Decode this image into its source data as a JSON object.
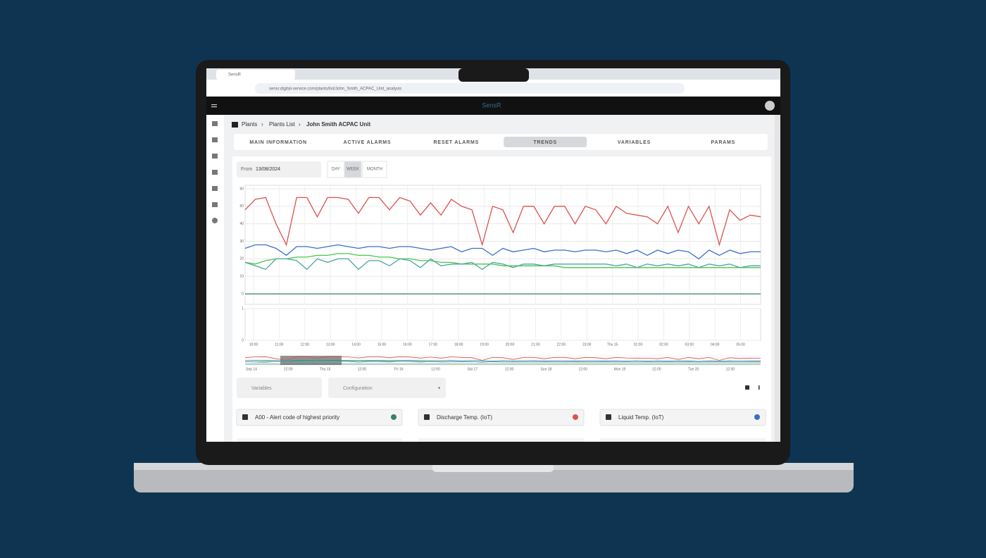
{
  "browser": {
    "tab_title": "SensR",
    "url": "sensr.digital-service.com/plants/list/John_Smith_ACPAC_Unit_analysis"
  },
  "app": {
    "logo": "SensR"
  },
  "breadcrumb": [
    "Plants",
    "Plants List",
    "John Smith ACPAC Unit"
  ],
  "tabs": {
    "items": [
      "MAIN INFORMATION",
      "ACTIVE ALARMS",
      "RESET ALARMS",
      "TRENDS",
      "VARIABLES",
      "PARAMS"
    ],
    "active": 3
  },
  "date_filter": {
    "label": "From",
    "date": "13/08/2024",
    "ranges": [
      "DAY",
      "WEEK",
      "MONTH"
    ],
    "active": 1
  },
  "chart": {
    "type": "line",
    "ylim": [
      -6,
      62
    ],
    "yticks": [
      0,
      10,
      20,
      30,
      40,
      50,
      60
    ],
    "lower_ylim": [
      0,
      1
    ],
    "lower_yticks": [
      0,
      1
    ],
    "xticks": [
      "10:00",
      "11:00",
      "12:00",
      "13:00",
      "14:00",
      "15:00",
      "16:00",
      "17:00",
      "18:00",
      "19:00",
      "20:00",
      "21:00",
      "22:00",
      "23:00",
      "Thu 15",
      "01:00",
      "02:00",
      "03:00",
      "04:00",
      "05:00"
    ],
    "grid": true,
    "series": [
      {
        "name": "Discharge Temp. (IoT)",
        "color": "#d9534f",
        "values": [
          48,
          54,
          55,
          40,
          28,
          55,
          55,
          44,
          55,
          55,
          54,
          46,
          55,
          55,
          48,
          55,
          53,
          45,
          52,
          45,
          54,
          50,
          48,
          28,
          50,
          48,
          35,
          50,
          50,
          40,
          50,
          50,
          40,
          50,
          48,
          40,
          50,
          46,
          45,
          44,
          40,
          50,
          35,
          50,
          40,
          50,
          28,
          48,
          42,
          45,
          44
        ]
      },
      {
        "name": "Liquid Temp. (IoT)",
        "color": "#3a6fc4",
        "values": [
          26,
          28,
          28,
          26,
          22,
          27,
          27,
          26,
          27,
          28,
          27,
          26,
          27,
          27,
          26,
          27,
          27,
          26,
          25,
          26,
          27,
          24,
          26,
          26,
          22,
          26,
          24,
          25,
          26,
          24,
          25,
          25,
          24,
          25,
          25,
          24,
          25,
          23,
          25,
          22,
          25,
          23,
          25,
          24,
          20,
          25,
          22,
          25,
          23,
          24,
          24
        ]
      },
      {
        "color": "#4cc44c",
        "values": [
          18,
          17,
          19,
          20,
          20,
          21,
          21,
          22,
          22,
          23,
          23,
          22,
          22,
          21,
          21,
          20,
          20,
          19,
          19,
          18,
          18,
          17,
          17,
          17,
          17,
          16,
          16,
          16,
          16,
          16,
          16,
          15,
          15,
          15,
          15,
          15,
          15,
          15,
          15,
          15,
          15,
          15,
          15,
          15,
          15,
          15,
          15,
          15,
          15,
          15,
          15
        ]
      },
      {
        "color": "#4aa8a0",
        "values": [
          18,
          16,
          14,
          20,
          20,
          19,
          14,
          20,
          18,
          20,
          20,
          14,
          19,
          19,
          16,
          20,
          19,
          15,
          20,
          16,
          17,
          17,
          18,
          14,
          18,
          17,
          15,
          17,
          17,
          16,
          17,
          17,
          17,
          17,
          17,
          17,
          16,
          17,
          15,
          17,
          16,
          17,
          16,
          17,
          15,
          17,
          16,
          17,
          15,
          16,
          16
        ]
      },
      {
        "name": "A00 - Alert code of highest priority",
        "color": "#3d7f62",
        "values": [
          0,
          0,
          0,
          0,
          0,
          0,
          0,
          0,
          0,
          0,
          0,
          0,
          0,
          0,
          0,
          0,
          0,
          0,
          0,
          0,
          0,
          0,
          0,
          0,
          0,
          0,
          0,
          0,
          0,
          0,
          0,
          0,
          0,
          0,
          0,
          0,
          0,
          0,
          0,
          0,
          0,
          0,
          0,
          0,
          0,
          0,
          0,
          0,
          0,
          0,
          0
        ]
      }
    ],
    "navigator_labels": [
      "Sep 14",
      "12:00",
      "Thu 15",
      "12:00",
      "Fri 16",
      "12:00",
      "Sat 17",
      "12:00",
      "Sun 18",
      "12:00",
      "Mon 19",
      "12:00",
      "Tue 20",
      "12:00"
    ]
  },
  "controls": {
    "search": "Variables",
    "configuration": "Configuration"
  },
  "cards": [
    4,
    0,
    1
  ]
}
